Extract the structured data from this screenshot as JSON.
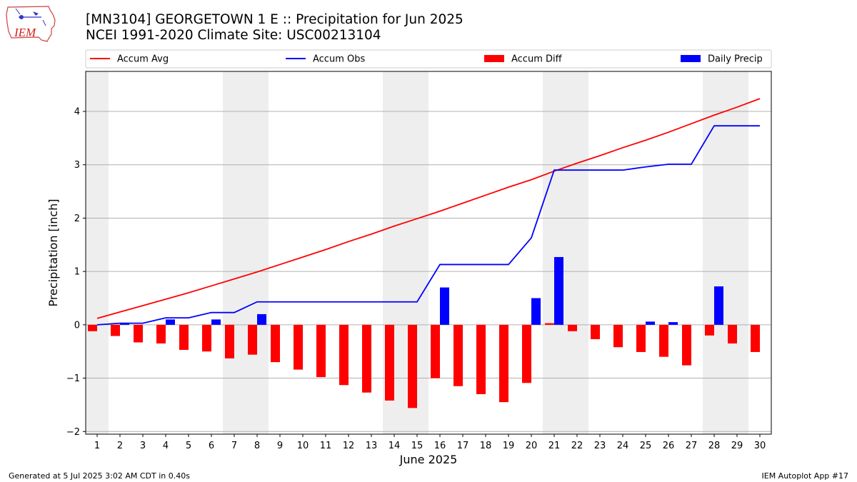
{
  "header": {
    "title_line1": "[MN3104] GEORGETOWN 1 E :: Precipitation for Jun 2025",
    "title_line2": "NCEI 1991-2020 Climate Site: USC00213104",
    "logo_text": "IEM"
  },
  "footer": {
    "left": "Generated at 5 Jul 2025 3:02 AM CDT in 0.40s",
    "right": "IEM Autoplot App #17"
  },
  "colors": {
    "accum_avg": "#ff0000",
    "accum_obs": "#0000ff",
    "accum_diff": "#ff0000",
    "daily_precip": "#0000ff",
    "weekend_shade": "#eeeeee",
    "grid": "#b0b0b0"
  },
  "chart_data": {
    "type": "bar",
    "xlabel": "June 2025",
    "ylabel": "Precipitation [inch]",
    "x": [
      1,
      2,
      3,
      4,
      5,
      6,
      7,
      8,
      9,
      10,
      11,
      12,
      13,
      14,
      15,
      16,
      17,
      18,
      19,
      20,
      21,
      22,
      23,
      24,
      25,
      26,
      27,
      28,
      29,
      30
    ],
    "ylim": [
      -2.05,
      4.75
    ],
    "yticks": [
      -2,
      -1,
      0,
      1,
      2,
      3,
      4
    ],
    "grid": "horizontal",
    "legend_position": "top",
    "legend": [
      "Accum Avg",
      "Accum Obs",
      "Accum Diff",
      "Daily Precip"
    ],
    "shaded_days": [
      [
        1,
        1
      ],
      [
        7,
        8
      ],
      [
        14,
        15
      ],
      [
        21,
        22
      ],
      [
        28,
        29
      ]
    ],
    "series": [
      {
        "name": "Accum Avg",
        "type": "line",
        "values": [
          0.12,
          0.24,
          0.36,
          0.48,
          0.6,
          0.73,
          0.86,
          0.99,
          1.13,
          1.27,
          1.41,
          1.56,
          1.7,
          1.85,
          1.99,
          2.13,
          2.28,
          2.43,
          2.58,
          2.72,
          2.88,
          3.03,
          3.17,
          3.32,
          3.46,
          3.61,
          3.77,
          3.93,
          4.08,
          4.24
        ]
      },
      {
        "name": "Accum Obs",
        "type": "line",
        "values": [
          0.0,
          0.03,
          0.03,
          0.13,
          0.13,
          0.23,
          0.23,
          0.43,
          0.43,
          0.43,
          0.43,
          0.43,
          0.43,
          0.43,
          0.43,
          1.13,
          1.13,
          1.13,
          1.13,
          1.63,
          2.9,
          2.9,
          2.9,
          2.9,
          2.96,
          3.01,
          3.01,
          3.73,
          3.73,
          3.73
        ]
      },
      {
        "name": "Accum Diff",
        "type": "bar",
        "values": [
          -0.12,
          -0.21,
          -0.33,
          -0.35,
          -0.47,
          -0.5,
          -0.63,
          -0.56,
          -0.7,
          -0.84,
          -0.98,
          -1.13,
          -1.27,
          -1.42,
          -1.56,
          -1.0,
          -1.15,
          -1.3,
          -1.45,
          -1.09,
          0.03,
          -0.12,
          -0.27,
          -0.42,
          -0.51,
          -0.6,
          -0.76,
          -0.2,
          -0.35,
          -0.51
        ]
      },
      {
        "name": "Daily Precip",
        "type": "bar",
        "values": [
          0.0,
          0.03,
          0.0,
          0.1,
          0.0,
          0.1,
          0.0,
          0.2,
          0.0,
          0.0,
          0.0,
          0.0,
          0.0,
          0.0,
          0.0,
          0.7,
          0.0,
          0.0,
          0.0,
          0.5,
          1.27,
          0.0,
          0.0,
          0.0,
          0.06,
          0.05,
          0.0,
          0.72,
          0.0,
          0.0
        ]
      }
    ]
  }
}
